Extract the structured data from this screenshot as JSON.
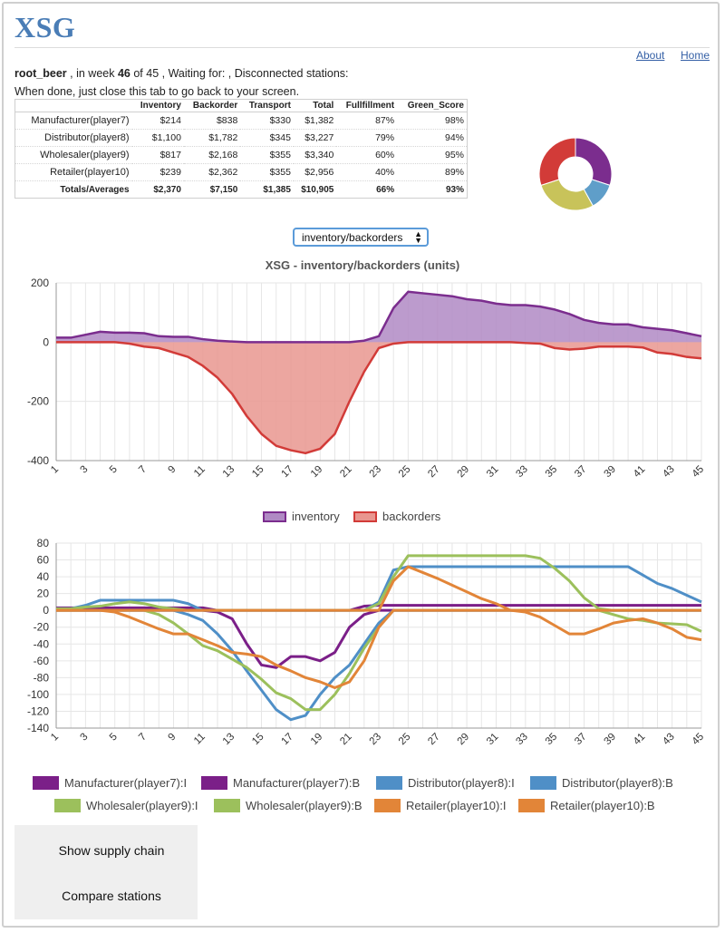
{
  "header": {
    "logo": "XSG",
    "about_link": "About",
    "home_link": "Home"
  },
  "status": {
    "game_name": "root_beer",
    "week_prefix": ", in week",
    "week": "46",
    "week_suffix": "of 45 , Waiting for: , Disconnected stations:",
    "done_text": "When done, just close this tab to go back to your screen."
  },
  "table": {
    "headers": [
      "",
      "Inventory",
      "Backorder",
      "Transport",
      "Total",
      "Fullfillment",
      "Green_Score"
    ],
    "rows": [
      {
        "name": "Manufacturer(player7)",
        "inventory": "$214",
        "backorder": "$838",
        "transport": "$330",
        "total": "$1,382",
        "fulfillment": "87%",
        "green": "98%"
      },
      {
        "name": "Distributor(player8)",
        "inventory": "$1,100",
        "backorder": "$1,782",
        "transport": "$345",
        "total": "$3,227",
        "fulfillment": "79%",
        "green": "94%"
      },
      {
        "name": "Wholesaler(player9)",
        "inventory": "$817",
        "backorder": "$2,168",
        "transport": "$355",
        "total": "$3,340",
        "fulfillment": "60%",
        "green": "95%"
      },
      {
        "name": "Retailer(player10)",
        "inventory": "$239",
        "backorder": "$2,362",
        "transport": "$355",
        "total": "$2,956",
        "fulfillment": "40%",
        "green": "89%"
      }
    ],
    "totals": {
      "name": "Totals/Averages",
      "inventory": "$2,370",
      "backorder": "$7,150",
      "transport": "$1,385",
      "total": "$10,905",
      "fulfillment": "66%",
      "green": "93%"
    }
  },
  "donut": {
    "slices": [
      {
        "value": 0.3,
        "color": "#7b2d8e"
      },
      {
        "value": 0.12,
        "color": "#5f9ec9"
      },
      {
        "value": 0.28,
        "color": "#c8c35a"
      },
      {
        "value": 0.3,
        "color": "#d23b38"
      }
    ]
  },
  "chart_selector": {
    "selected": "inventory/backorders"
  },
  "chart_data": [
    {
      "type": "area",
      "title": "XSG - inventory/backorders (units)",
      "x": [
        1,
        2,
        3,
        4,
        5,
        6,
        7,
        8,
        9,
        10,
        11,
        12,
        13,
        14,
        15,
        16,
        17,
        18,
        19,
        20,
        21,
        22,
        23,
        24,
        25,
        26,
        27,
        28,
        29,
        30,
        31,
        32,
        33,
        34,
        35,
        36,
        37,
        38,
        39,
        40,
        41,
        42,
        43,
        44,
        45
      ],
      "xticks": [
        1,
        3,
        5,
        7,
        9,
        11,
        13,
        15,
        17,
        19,
        21,
        23,
        25,
        27,
        29,
        31,
        33,
        35,
        37,
        39,
        41,
        43,
        45
      ],
      "ylim": [
        -400,
        200
      ],
      "yticks": [
        200,
        0,
        -200,
        -400
      ],
      "series": [
        {
          "name": "inventory",
          "color": "#7b2d8e",
          "fill": "#b08ac4",
          "values": [
            15,
            15,
            25,
            35,
            32,
            32,
            30,
            20,
            18,
            18,
            10,
            5,
            2,
            0,
            0,
            0,
            0,
            0,
            0,
            0,
            0,
            5,
            20,
            115,
            170,
            165,
            160,
            155,
            145,
            140,
            130,
            125,
            125,
            120,
            110,
            95,
            75,
            65,
            60,
            60,
            50,
            45,
            40,
            30,
            20
          ]
        },
        {
          "name": "backorders",
          "color": "#d23b38",
          "fill": "#e9968f",
          "values": [
            0,
            0,
            0,
            0,
            0,
            -5,
            -15,
            -20,
            -35,
            -50,
            -80,
            -120,
            -175,
            -250,
            -310,
            -350,
            -365,
            -375,
            -360,
            -310,
            -200,
            -100,
            -20,
            -5,
            0,
            0,
            0,
            0,
            0,
            0,
            0,
            0,
            -3,
            -5,
            -20,
            -25,
            -22,
            -15,
            -15,
            -15,
            -18,
            -35,
            -40,
            -50,
            -55
          ]
        }
      ]
    },
    {
      "type": "line",
      "x": [
        1,
        2,
        3,
        4,
        5,
        6,
        7,
        8,
        9,
        10,
        11,
        12,
        13,
        14,
        15,
        16,
        17,
        18,
        19,
        20,
        21,
        22,
        23,
        24,
        25,
        26,
        27,
        28,
        29,
        30,
        31,
        32,
        33,
        34,
        35,
        36,
        37,
        38,
        39,
        40,
        41,
        42,
        43,
        44,
        45
      ],
      "xticks": [
        1,
        3,
        5,
        7,
        9,
        11,
        13,
        15,
        17,
        19,
        21,
        23,
        25,
        27,
        29,
        31,
        33,
        35,
        37,
        39,
        41,
        43,
        45
      ],
      "ylim": [
        -140,
        80
      ],
      "yticks": [
        80,
        60,
        40,
        20,
        0,
        -20,
        -40,
        -60,
        -80,
        -100,
        -120,
        -140
      ],
      "series": [
        {
          "name": "Manufacturer(player7):I",
          "color": "#7b1f88",
          "values": [
            3,
            3,
            3,
            3,
            3,
            3,
            3,
            3,
            3,
            3,
            3,
            0,
            0,
            0,
            0,
            0,
            0,
            0,
            0,
            0,
            0,
            5,
            6,
            6,
            6,
            6,
            6,
            6,
            6,
            6,
            6,
            6,
            6,
            6,
            6,
            6,
            6,
            6,
            6,
            6,
            6,
            6,
            6,
            6,
            6
          ]
        },
        {
          "name": "Manufacturer(player7):B",
          "color": "#7b1f88",
          "values": [
            0,
            0,
            0,
            0,
            0,
            0,
            0,
            0,
            0,
            0,
            0,
            -2,
            -10,
            -40,
            -65,
            -68,
            -55,
            -55,
            -60,
            -50,
            -20,
            -5,
            0,
            0,
            0,
            0,
            0,
            0,
            0,
            0,
            0,
            0,
            0,
            0,
            0,
            0,
            0,
            0,
            0,
            0,
            0,
            0,
            0,
            0,
            0
          ]
        },
        {
          "name": "Distributor(player8):I",
          "color": "#4f8fc7",
          "values": [
            2,
            2,
            6,
            12,
            12,
            12,
            12,
            12,
            12,
            8,
            0,
            0,
            0,
            0,
            0,
            0,
            0,
            0,
            0,
            0,
            0,
            0,
            10,
            48,
            52,
            52,
            52,
            52,
            52,
            52,
            52,
            52,
            52,
            52,
            52,
            52,
            52,
            52,
            52,
            52,
            42,
            32,
            26,
            18,
            10
          ]
        },
        {
          "name": "Distributor(player8):B",
          "color": "#4f8fc7",
          "values": [
            0,
            0,
            0,
            0,
            0,
            0,
            0,
            0,
            0,
            -5,
            -12,
            -28,
            -48,
            -72,
            -95,
            -118,
            -130,
            -125,
            -100,
            -80,
            -65,
            -40,
            -15,
            0,
            0,
            0,
            0,
            0,
            0,
            0,
            0,
            0,
            0,
            0,
            0,
            0,
            0,
            0,
            0,
            0,
            0,
            0,
            0,
            0,
            0
          ]
        },
        {
          "name": "Wholesaler(player9):I",
          "color": "#9cc05c",
          "values": [
            2,
            2,
            4,
            5,
            8,
            10,
            8,
            4,
            2,
            0,
            0,
            0,
            0,
            0,
            0,
            0,
            0,
            0,
            0,
            0,
            0,
            0,
            8,
            40,
            65,
            65,
            65,
            65,
            65,
            65,
            65,
            65,
            65,
            62,
            50,
            35,
            15,
            2,
            0,
            0,
            0,
            0,
            0,
            0,
            0
          ]
        },
        {
          "name": "Wholesaler(player9):B",
          "color": "#9cc05c",
          "values": [
            0,
            0,
            0,
            0,
            0,
            0,
            0,
            -5,
            -15,
            -28,
            -42,
            -48,
            -58,
            -68,
            -82,
            -98,
            -105,
            -118,
            -118,
            -100,
            -75,
            -45,
            -20,
            0,
            0,
            0,
            0,
            0,
            0,
            0,
            0,
            0,
            0,
            0,
            0,
            0,
            0,
            0,
            -5,
            -10,
            -12,
            -15,
            -16,
            -17,
            -25
          ]
        },
        {
          "name": "Retailer(player10):I",
          "color": "#e28538",
          "values": [
            0,
            0,
            0,
            0,
            0,
            0,
            0,
            0,
            0,
            0,
            0,
            0,
            0,
            0,
            0,
            0,
            0,
            0,
            0,
            0,
            0,
            0,
            0,
            35,
            52,
            45,
            38,
            30,
            22,
            14,
            8,
            0,
            0,
            0,
            0,
            0,
            0,
            0,
            0,
            0,
            0,
            0,
            0,
            0,
            0
          ]
        },
        {
          "name": "Retailer(player10):B",
          "color": "#e28538",
          "values": [
            0,
            0,
            0,
            0,
            -2,
            -8,
            -15,
            -22,
            -28,
            -28,
            -35,
            -42,
            -50,
            -52,
            -55,
            -65,
            -72,
            -80,
            -85,
            -92,
            -85,
            -60,
            -20,
            0,
            0,
            0,
            0,
            0,
            0,
            0,
            0,
            0,
            -2,
            -8,
            -18,
            -28,
            -28,
            -22,
            -15,
            -12,
            -10,
            -15,
            -22,
            -32,
            -35
          ]
        }
      ]
    }
  ],
  "actions": {
    "show_supply_chain": "Show supply chain",
    "compare_stations": "Compare stations"
  }
}
